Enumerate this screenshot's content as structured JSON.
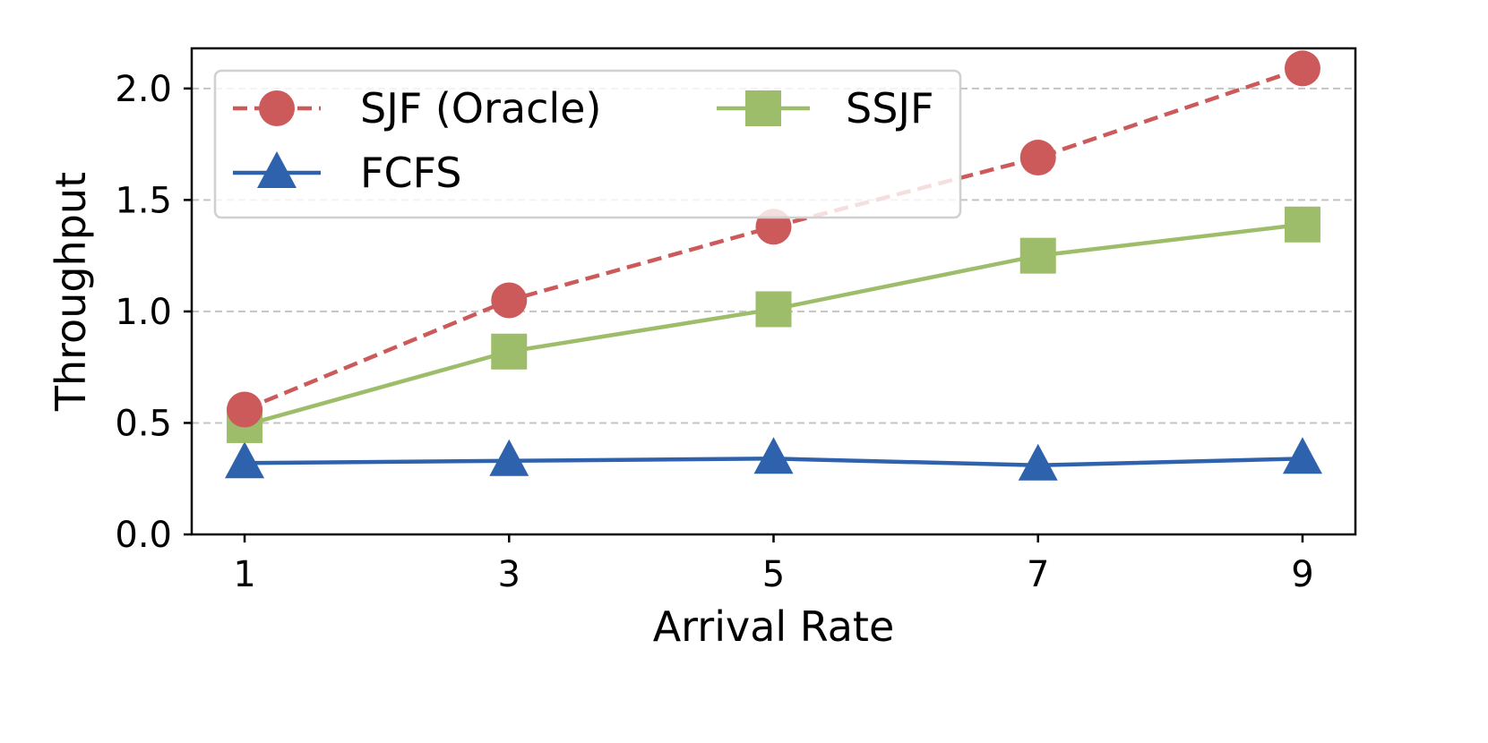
{
  "chart_data": {
    "type": "line",
    "xlabel": "Arrival Rate",
    "ylabel": "Throughput",
    "x": [
      1,
      3,
      5,
      7,
      9
    ],
    "xticks": [
      "1",
      "3",
      "5",
      "7",
      "9"
    ],
    "xlim": [
      0.6,
      9.4
    ],
    "ylim": [
      0.0,
      2.18
    ],
    "yticks": [
      "0.0",
      "0.5",
      "1.0",
      "1.5",
      "2.0"
    ],
    "ytick_values": [
      0.0,
      0.5,
      1.0,
      1.5,
      2.0
    ],
    "grid": "horizontal dashed",
    "legend_position": "top-left",
    "series": [
      {
        "name": "SJF (Oracle)",
        "values": [
          0.56,
          1.05,
          1.38,
          1.69,
          2.09
        ],
        "color": "#cc5a5a",
        "marker": "circle",
        "linestyle": "dashed"
      },
      {
        "name": "SSJF",
        "values": [
          0.49,
          0.82,
          1.01,
          1.25,
          1.39
        ],
        "color": "#9dbd6a",
        "marker": "square",
        "linestyle": "solid"
      },
      {
        "name": "FCFS",
        "values": [
          0.32,
          0.33,
          0.34,
          0.31,
          0.34
        ],
        "color": "#2f62ad",
        "marker": "triangle",
        "linestyle": "solid"
      }
    ]
  }
}
